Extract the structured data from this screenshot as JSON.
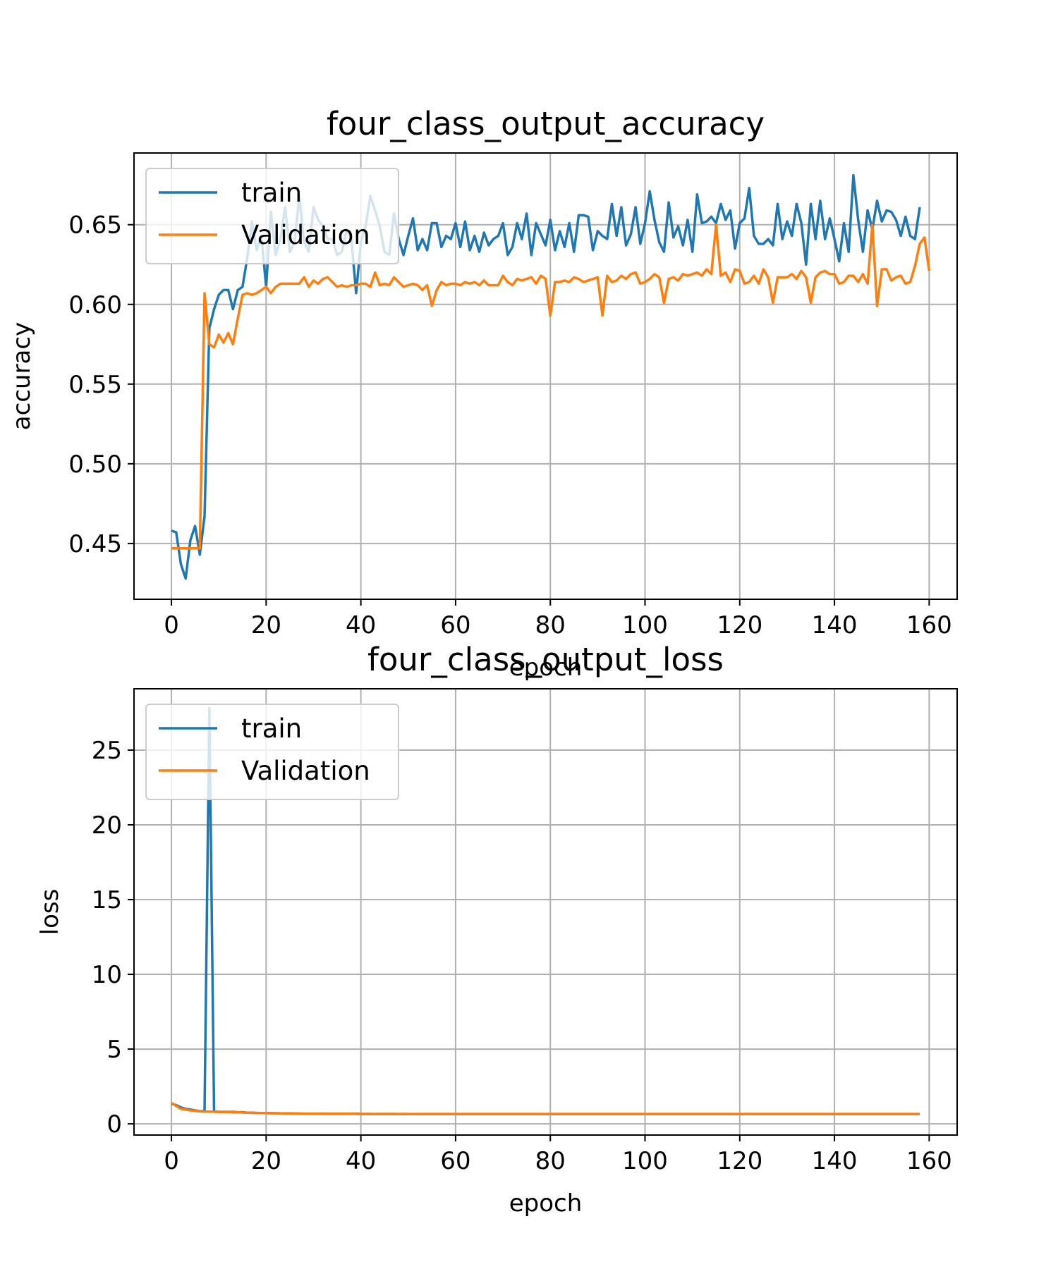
{
  "colors": {
    "train": "#1f77b4",
    "validation": "#ff7f0e",
    "grid": "#b0b0b0",
    "axes": "#000000"
  },
  "chart_data": [
    {
      "type": "line",
      "title": "four_class_output_accuracy",
      "xlabel": "epoch",
      "ylabel": "accuracy",
      "xlim": [
        -7.9,
        165.9
      ],
      "ylim": [
        0.415,
        0.695
      ],
      "xticks": [
        0,
        20,
        40,
        60,
        80,
        100,
        120,
        140,
        160
      ],
      "xtick_labels": [
        "0",
        "20",
        "40",
        "60",
        "80",
        "100",
        "120",
        "140",
        "160"
      ],
      "yticks": [
        0.45,
        0.5,
        0.55,
        0.6,
        0.65
      ],
      "ytick_labels": [
        "0.45",
        "0.50",
        "0.55",
        "0.60",
        "0.65"
      ],
      "grid": true,
      "legend_position": "upper left",
      "series": [
        {
          "name": "train",
          "color": "#1f77b4",
          "values": [
            0.458,
            0.457,
            0.437,
            0.428,
            0.452,
            0.461,
            0.443,
            0.467,
            0.585,
            0.597,
            0.606,
            0.609,
            0.609,
            0.597,
            0.609,
            0.611,
            0.629,
            0.652,
            0.634,
            0.643,
            0.611,
            0.658,
            0.631,
            0.641,
            0.661,
            0.633,
            0.639,
            0.668,
            0.639,
            0.633,
            0.661,
            0.653,
            0.649,
            0.641,
            0.641,
            0.631,
            0.633,
            0.647,
            0.641,
            0.607,
            0.639,
            0.649,
            0.668,
            0.659,
            0.649,
            0.633,
            0.631,
            0.657,
            0.641,
            0.631,
            0.643,
            0.654,
            0.634,
            0.641,
            0.634,
            0.651,
            0.651,
            0.636,
            0.643,
            0.641,
            0.651,
            0.636,
            0.652,
            0.634,
            0.643,
            0.633,
            0.645,
            0.637,
            0.641,
            0.643,
            0.651,
            0.631,
            0.636,
            0.651,
            0.641,
            0.657,
            0.631,
            0.651,
            0.644,
            0.637,
            0.653,
            0.634,
            0.646,
            0.636,
            0.651,
            0.633,
            0.656,
            0.656,
            0.655,
            0.634,
            0.646,
            0.643,
            0.641,
            0.663,
            0.643,
            0.661,
            0.637,
            0.644,
            0.661,
            0.638,
            0.651,
            0.671,
            0.653,
            0.639,
            0.633,
            0.664,
            0.642,
            0.649,
            0.637,
            0.653,
            0.633,
            0.669,
            0.651,
            0.652,
            0.655,
            0.651,
            0.663,
            0.653,
            0.659,
            0.635,
            0.651,
            0.654,
            0.673,
            0.643,
            0.638,
            0.638,
            0.641,
            0.637,
            0.663,
            0.641,
            0.652,
            0.643,
            0.663,
            0.651,
            0.625,
            0.663,
            0.641,
            0.665,
            0.641,
            0.654,
            0.641,
            0.627,
            0.651,
            0.633,
            0.681,
            0.653,
            0.633,
            0.659,
            0.647,
            0.665,
            0.652,
            0.659,
            0.658,
            0.653,
            0.643,
            0.655,
            0.643,
            0.641,
            0.661
          ]
        },
        {
          "name": "Validation",
          "color": "#ff7f0e",
          "values": [
            0.447,
            0.447,
            0.447,
            0.447,
            0.447,
            0.447,
            0.447,
            0.607,
            0.575,
            0.573,
            0.581,
            0.576,
            0.582,
            0.575,
            0.591,
            0.606,
            0.607,
            0.606,
            0.607,
            0.609,
            0.611,
            0.607,
            0.611,
            0.613,
            0.613,
            0.613,
            0.613,
            0.613,
            0.617,
            0.611,
            0.615,
            0.613,
            0.616,
            0.617,
            0.614,
            0.611,
            0.612,
            0.611,
            0.612,
            0.612,
            0.613,
            0.613,
            0.611,
            0.62,
            0.612,
            0.613,
            0.612,
            0.617,
            0.614,
            0.611,
            0.612,
            0.613,
            0.612,
            0.609,
            0.612,
            0.599,
            0.609,
            0.614,
            0.612,
            0.613,
            0.613,
            0.612,
            0.614,
            0.613,
            0.614,
            0.612,
            0.615,
            0.612,
            0.612,
            0.612,
            0.618,
            0.614,
            0.612,
            0.616,
            0.615,
            0.616,
            0.617,
            0.613,
            0.618,
            0.616,
            0.593,
            0.614,
            0.614,
            0.615,
            0.614,
            0.617,
            0.616,
            0.614,
            0.615,
            0.616,
            0.617,
            0.593,
            0.618,
            0.614,
            0.615,
            0.618,
            0.616,
            0.619,
            0.62,
            0.613,
            0.614,
            0.616,
            0.619,
            0.617,
            0.601,
            0.616,
            0.617,
            0.615,
            0.619,
            0.618,
            0.619,
            0.62,
            0.618,
            0.622,
            0.619,
            0.65,
            0.618,
            0.62,
            0.614,
            0.622,
            0.621,
            0.613,
            0.614,
            0.618,
            0.613,
            0.622,
            0.617,
            0.601,
            0.617,
            0.617,
            0.617,
            0.619,
            0.616,
            0.621,
            0.617,
            0.601,
            0.617,
            0.62,
            0.621,
            0.619,
            0.619,
            0.613,
            0.614,
            0.618,
            0.618,
            0.614,
            0.619,
            0.613,
            0.65,
            0.599,
            0.622,
            0.622,
            0.615,
            0.617,
            0.618,
            0.613,
            0.614,
            0.624,
            0.638,
            0.642,
            0.621
          ]
        }
      ]
    },
    {
      "type": "line",
      "title": "four_class_output_loss",
      "xlabel": "epoch",
      "ylabel": "loss",
      "xlim": [
        -7.9,
        165.9
      ],
      "ylim": [
        -0.75,
        29.1
      ],
      "xticks": [
        0,
        20,
        40,
        60,
        80,
        100,
        120,
        140,
        160
      ],
      "xtick_labels": [
        "0",
        "20",
        "40",
        "60",
        "80",
        "100",
        "120",
        "140",
        "160"
      ],
      "yticks": [
        0,
        5,
        10,
        15,
        20,
        25
      ],
      "ytick_labels": [
        "0",
        "5",
        "10",
        "15",
        "20",
        "25"
      ],
      "grid": true,
      "legend_position": "upper left",
      "series": [
        {
          "name": "train",
          "color": "#1f77b4",
          "values": [
            1.35,
            1.25,
            1.1,
            1.0,
            0.95,
            0.9,
            0.85,
            0.85,
            27.8,
            0.82,
            0.8,
            0.8,
            0.8,
            0.8,
            0.78,
            0.78,
            0.75,
            0.75,
            0.72,
            0.72,
            0.72,
            0.71,
            0.71,
            0.7,
            0.7,
            0.7,
            0.69,
            0.69,
            0.68,
            0.68,
            0.68,
            0.68,
            0.68,
            0.67,
            0.67,
            0.67,
            0.67,
            0.67,
            0.67,
            0.68,
            0.66,
            0.66,
            0.66,
            0.65,
            0.66,
            0.66,
            0.66,
            0.66,
            0.65,
            0.66,
            0.65,
            0.65,
            0.65,
            0.65,
            0.65,
            0.65,
            0.65,
            0.65,
            0.65,
            0.65,
            0.65,
            0.65,
            0.65,
            0.65,
            0.65,
            0.65,
            0.65,
            0.65,
            0.65,
            0.65,
            0.65,
            0.65,
            0.65,
            0.65,
            0.65,
            0.65,
            0.65,
            0.65,
            0.65,
            0.65,
            0.65,
            0.65,
            0.65,
            0.65,
            0.65,
            0.65,
            0.65,
            0.65,
            0.65,
            0.65,
            0.65,
            0.65,
            0.65,
            0.65,
            0.65,
            0.65,
            0.65,
            0.65,
            0.65,
            0.65,
            0.65,
            0.65,
            0.65,
            0.65,
            0.65,
            0.65,
            0.65,
            0.65,
            0.65,
            0.65,
            0.65,
            0.65,
            0.65,
            0.65,
            0.65,
            0.65,
            0.65,
            0.65,
            0.65,
            0.65,
            0.65,
            0.65,
            0.65,
            0.65,
            0.65,
            0.65,
            0.65,
            0.65,
            0.65,
            0.65,
            0.65,
            0.65,
            0.65,
            0.65,
            0.65,
            0.65,
            0.65,
            0.65,
            0.65,
            0.65,
            0.65,
            0.65,
            0.65,
            0.65,
            0.65,
            0.65,
            0.65,
            0.65,
            0.65,
            0.65,
            0.65,
            0.65,
            0.65,
            0.65,
            0.65,
            0.65,
            0.65,
            0.65,
            0.65
          ]
        },
        {
          "name": "Validation",
          "color": "#ff7f0e",
          "values": [
            1.4,
            1.2,
            1.0,
            0.95,
            0.9,
            0.87,
            0.84,
            0.82,
            0.82,
            0.81,
            0.8,
            0.8,
            0.79,
            0.78,
            0.77,
            0.76,
            0.75,
            0.74,
            0.73,
            0.72,
            0.72,
            0.71,
            0.71,
            0.7,
            0.7,
            0.69,
            0.69,
            0.68,
            0.68,
            0.68,
            0.68,
            0.67,
            0.67,
            0.67,
            0.67,
            0.67,
            0.67,
            0.67,
            0.67,
            0.67,
            0.66,
            0.66,
            0.66,
            0.66,
            0.66,
            0.66,
            0.66,
            0.66,
            0.66,
            0.66,
            0.66,
            0.66,
            0.66,
            0.66,
            0.66,
            0.66,
            0.66,
            0.66,
            0.66,
            0.66,
            0.66,
            0.66,
            0.66,
            0.66,
            0.66,
            0.66,
            0.66,
            0.66,
            0.66,
            0.66,
            0.66,
            0.66,
            0.66,
            0.66,
            0.66,
            0.66,
            0.66,
            0.66,
            0.66,
            0.66,
            0.66,
            0.66,
            0.66,
            0.66,
            0.66,
            0.66,
            0.66,
            0.66,
            0.66,
            0.66,
            0.66,
            0.66,
            0.66,
            0.66,
            0.66,
            0.66,
            0.66,
            0.66,
            0.66,
            0.66,
            0.66,
            0.66,
            0.66,
            0.66,
            0.66,
            0.66,
            0.66,
            0.66,
            0.66,
            0.66,
            0.66,
            0.66,
            0.66,
            0.66,
            0.66,
            0.66,
            0.66,
            0.66,
            0.66,
            0.66,
            0.66,
            0.66,
            0.66,
            0.66,
            0.66,
            0.66,
            0.66,
            0.66,
            0.66,
            0.66,
            0.66,
            0.66,
            0.66,
            0.66,
            0.66,
            0.66,
            0.66,
            0.66,
            0.66,
            0.66,
            0.66,
            0.66,
            0.66,
            0.66,
            0.66,
            0.66,
            0.66,
            0.66,
            0.66,
            0.66,
            0.66,
            0.66,
            0.66,
            0.66,
            0.66,
            0.66,
            0.66,
            0.66,
            0.66
          ]
        }
      ]
    }
  ]
}
